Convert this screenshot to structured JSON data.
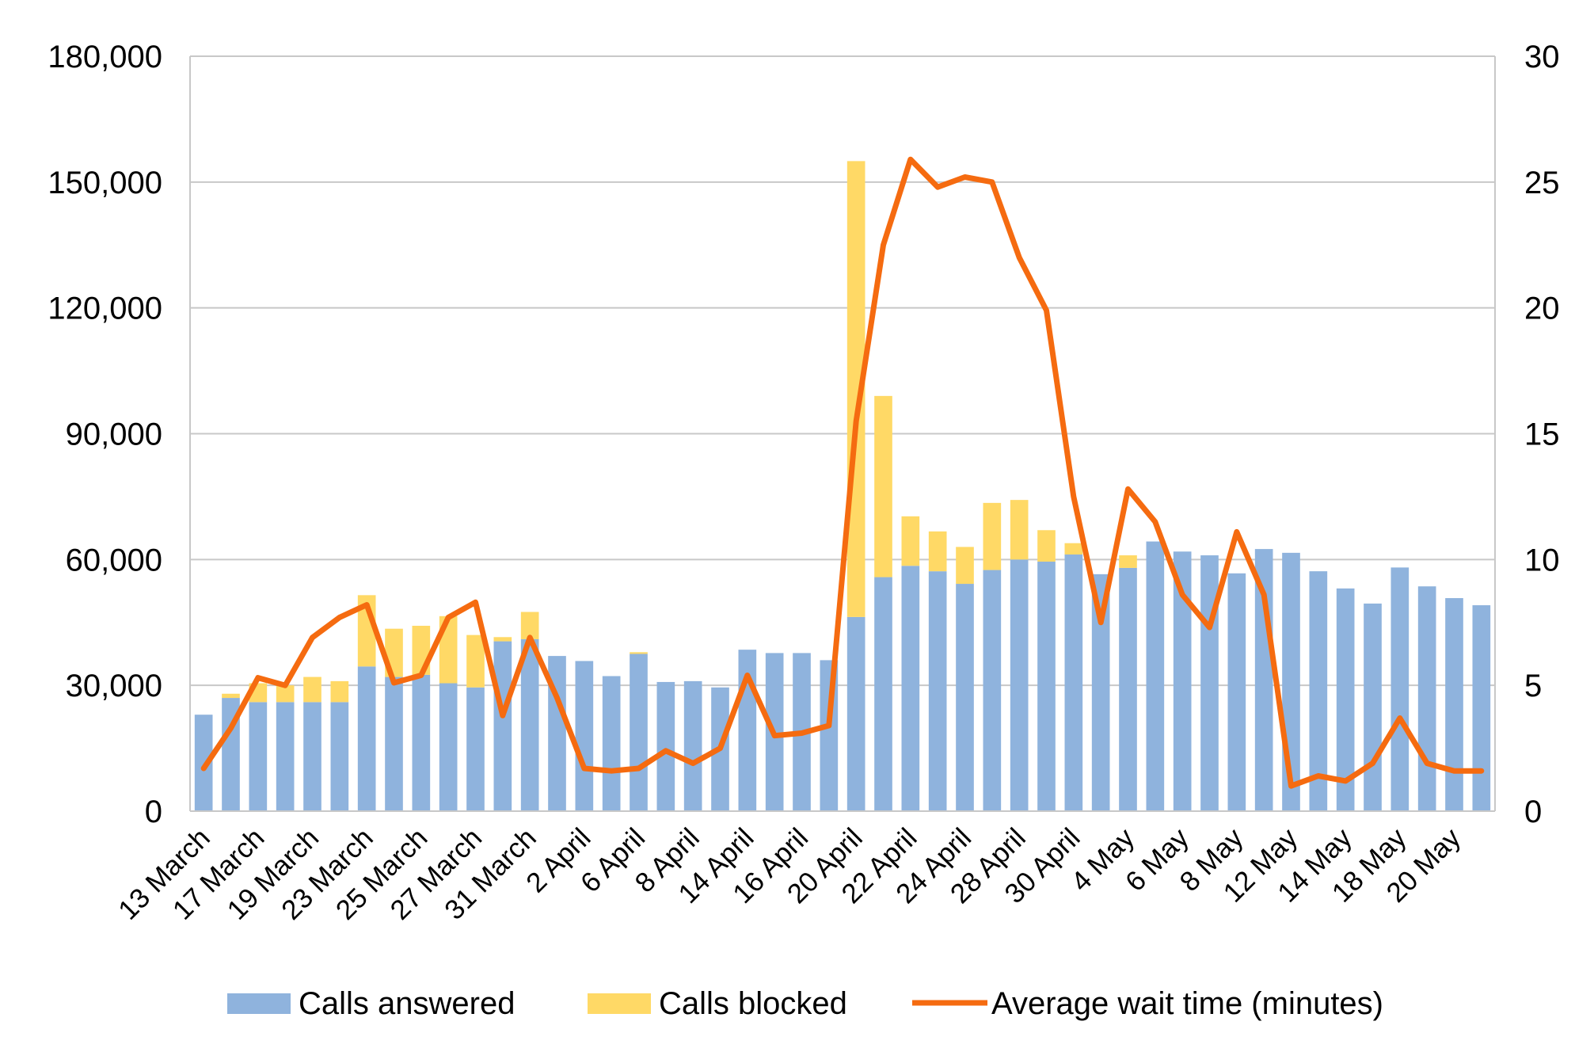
{
  "chart_data": {
    "type": "bar",
    "stacked": true,
    "categories": [
      "13 March",
      "",
      "17 March",
      "",
      "19 March",
      "",
      "23 March",
      "",
      "25 March",
      "",
      "27 March",
      "",
      "31 March",
      "",
      "2 April",
      "",
      "6 April",
      "",
      "8 April",
      "",
      "14 April",
      "",
      "16 April",
      "",
      "20 April",
      "",
      "22 April",
      "",
      "24 April",
      "",
      "28 April",
      "",
      "30 April",
      "",
      "4 May",
      "",
      "6 May",
      "",
      "8 May",
      "",
      "12 May",
      "",
      "14 May",
      "",
      "18 May",
      "",
      "20 May",
      ""
    ],
    "x_tick_labels": [
      "13 March",
      "17 March",
      "19 March",
      "23 March",
      "25 March",
      "27 March",
      "31 March",
      "2 April",
      "6 April",
      "8 April",
      "14 April",
      "16 April",
      "20 April",
      "22 April",
      "24 April",
      "28 April",
      "30 April",
      "4 May",
      "6 May",
      "8 May",
      "12 May",
      "14 May",
      "18 May",
      "20 May"
    ],
    "series": [
      {
        "name": "Calls answered",
        "color": "#8FB3DD",
        "axis": "left",
        "values": [
          23000,
          27000,
          26000,
          26000,
          26000,
          26000,
          34500,
          32000,
          32500,
          30500,
          29500,
          40500,
          41000,
          37000,
          35800,
          32200,
          37500,
          30800,
          31000,
          29500,
          38500,
          37700,
          37700,
          36000,
          46300,
          55800,
          58500,
          57200,
          54200,
          57500,
          60000,
          59500,
          61200,
          56500,
          58000,
          64300,
          61900,
          61000,
          56700,
          62500,
          61600,
          57200,
          53100,
          49500,
          58100,
          53600,
          50800,
          49100
        ]
      },
      {
        "name": "Calls blocked",
        "color": "#FFD966",
        "axis": "left",
        "values": [
          0,
          1000,
          4500,
          4000,
          6000,
          5000,
          17000,
          11500,
          11700,
          16000,
          12500,
          1000,
          6500,
          0,
          0,
          0,
          400,
          0,
          0,
          0,
          0,
          0,
          0,
          0,
          108700,
          43200,
          11800,
          9500,
          8800,
          16000,
          14200,
          7500,
          2700,
          0,
          3000,
          0,
          0,
          0,
          0,
          0,
          0,
          0,
          0,
          0,
          0,
          0,
          0,
          0
        ]
      },
      {
        "name": "Average wait time (minutes)",
        "color": "#F56B10",
        "axis": "right",
        "type": "line",
        "values": [
          1.7,
          3.3,
          5.3,
          5.0,
          6.9,
          7.7,
          8.2,
          5.1,
          5.4,
          7.7,
          8.3,
          3.8,
          6.9,
          4.5,
          1.7,
          1.6,
          1.7,
          2.4,
          1.9,
          2.5,
          5.4,
          3.0,
          3.1,
          3.4,
          15.5,
          22.5,
          25.9,
          24.8,
          25.2,
          25.0,
          22.0,
          19.9,
          12.5,
          7.5,
          12.8,
          11.5,
          8.6,
          7.3,
          11.1,
          8.6,
          1.0,
          1.4,
          1.2,
          1.9,
          3.7,
          1.9,
          1.6,
          1.6
        ]
      }
    ],
    "y_left": {
      "min": 0,
      "max": 180000,
      "ticks": [
        "0",
        "30,000",
        "60,000",
        "90,000",
        "120,000",
        "150,000",
        "180,000"
      ]
    },
    "y_right": {
      "min": 0,
      "max": 30,
      "ticks": [
        "0",
        "5",
        "10",
        "15",
        "20",
        "25",
        "30"
      ]
    },
    "grid": true,
    "legend_position": "bottom"
  }
}
